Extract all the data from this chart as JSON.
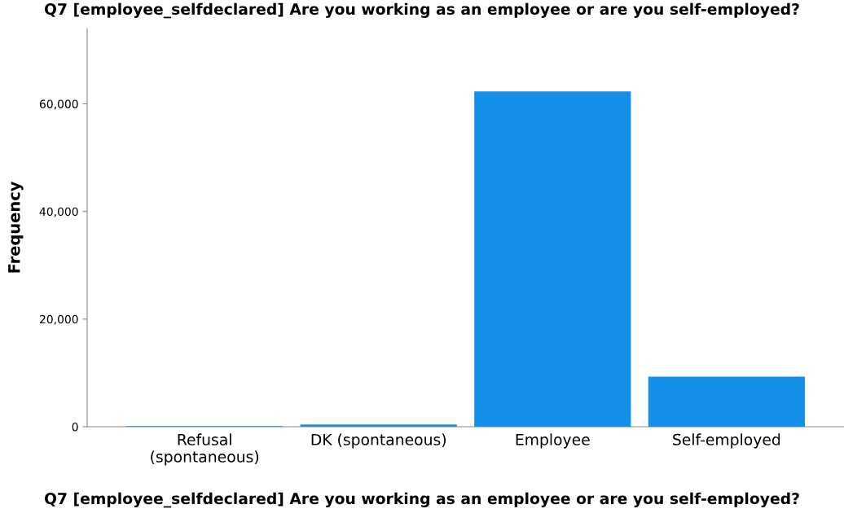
{
  "chart_data": {
    "type": "bar",
    "title": "Q7 [employee_selfdeclared] Are you working as an employee or are you self-employed?",
    "xlabel": "Q7 [employee_selfdeclared] Are you working as an employee or are you self-employed?",
    "ylabel": "Frequency",
    "categories": [
      "Refusal\n(spontaneous)",
      "DK (spontaneous)",
      "Employee",
      "Self-employed"
    ],
    "values": [
      100,
      400,
      62300,
      9300
    ],
    "color": "#1490e8",
    "ylim": [
      0,
      74000
    ],
    "yticks": [
      {
        "value": 0,
        "label": "0"
      },
      {
        "value": 20000,
        "label": "20,000"
      },
      {
        "value": 40000,
        "label": "40,000"
      },
      {
        "value": 60000,
        "label": "60,000"
      }
    ],
    "grid": false
  }
}
